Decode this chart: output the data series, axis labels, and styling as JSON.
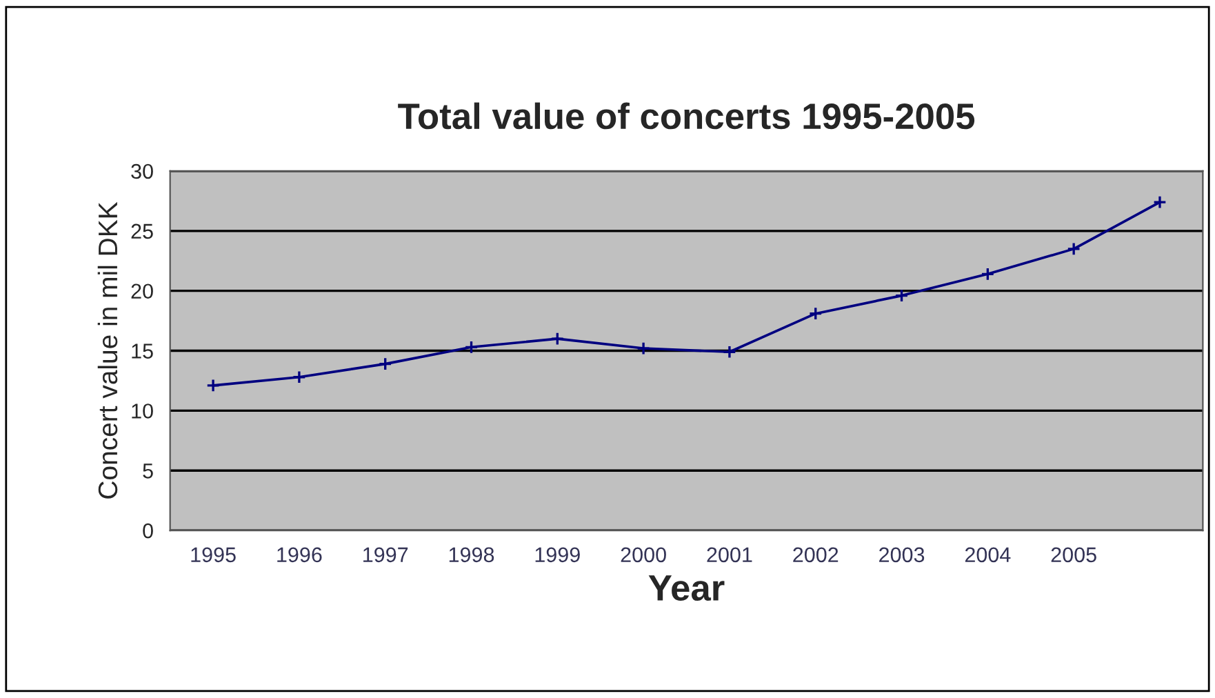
{
  "chart_data": {
    "type": "line",
    "title": "Total value of concerts 1995-2005",
    "xlabel": "Year",
    "ylabel": "Concert value in mil DKK",
    "categories": [
      "1995",
      "1996",
      "1997",
      "1998",
      "1999",
      "2000",
      "2001",
      "2002",
      "2003",
      "2004",
      "2005",
      null
    ],
    "series": [
      {
        "color": "#000080",
        "values": [
          12.1,
          12.8,
          13.9,
          15.3,
          16.0,
          15.2,
          14.9,
          18.1,
          19.6,
          21.4,
          23.5,
          27.4
        ]
      }
    ],
    "ylim": [
      0,
      30
    ],
    "yticks": [
      0,
      5,
      10,
      15,
      20,
      25,
      30
    ],
    "grid": "y",
    "marker": "cross",
    "line_style": "solid"
  }
}
